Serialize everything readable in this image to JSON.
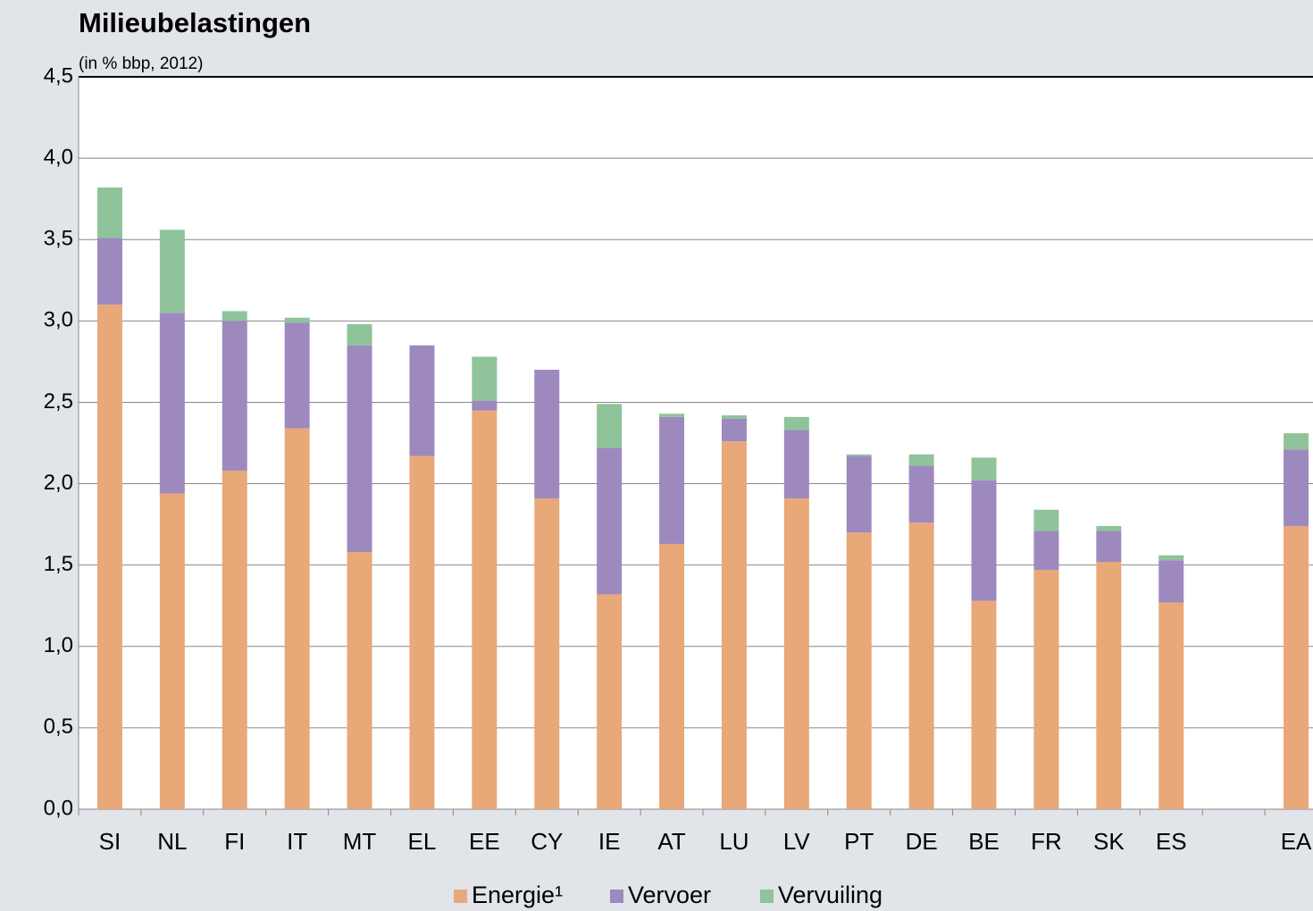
{
  "chart_data": {
    "type": "bar",
    "stacked": true,
    "title": "Milieubelastingen",
    "subtitle": "(in % bbp, 2012)",
    "categories": [
      "SI",
      "NL",
      "FI",
      "IT",
      "MT",
      "EL",
      "EE",
      "CY",
      "IE",
      "AT",
      "LU",
      "LV",
      "PT",
      "DE",
      "BE",
      "FR",
      "SK",
      "ES",
      null,
      "EA"
    ],
    "series": [
      {
        "name": "Energie¹",
        "color": "#e8a878",
        "values": [
          3.1,
          1.94,
          2.08,
          2.34,
          1.58,
          2.17,
          2.45,
          1.91,
          1.32,
          1.63,
          2.26,
          1.91,
          1.7,
          1.76,
          1.28,
          1.47,
          1.52,
          1.27,
          null,
          1.74
        ]
      },
      {
        "name": "Vervoer",
        "color": "#9e89bf",
        "values": [
          0.41,
          1.11,
          0.92,
          0.65,
          1.27,
          0.68,
          0.06,
          0.79,
          0.9,
          0.78,
          0.14,
          0.42,
          0.47,
          0.35,
          0.74,
          0.24,
          0.19,
          0.26,
          null,
          0.47
        ]
      },
      {
        "name": "Vervuiling",
        "color": "#8fc39a",
        "values": [
          0.31,
          0.51,
          0.06,
          0.03,
          0.13,
          0,
          0.27,
          0,
          0.27,
          0.02,
          0.02,
          0.08,
          0.01,
          0.07,
          0.14,
          0.13,
          0.03,
          0.03,
          null,
          0.1
        ]
      }
    ],
    "ylim": [
      0,
      4.5
    ],
    "yticks": [
      {
        "value": 0,
        "label": "0,0"
      },
      {
        "value": 0.5,
        "label": "0,5"
      },
      {
        "value": 1,
        "label": "1,0"
      },
      {
        "value": 1.5,
        "label": "1,5"
      },
      {
        "value": 2,
        "label": "2,0"
      },
      {
        "value": 2.5,
        "label": "2,5"
      },
      {
        "value": 3,
        "label": "3,0"
      },
      {
        "value": 3.5,
        "label": "3,5"
      },
      {
        "value": 4,
        "label": "4,0"
      },
      {
        "value": 4.5,
        "label": "4,5"
      }
    ],
    "grid": true,
    "legend": "bottom"
  }
}
